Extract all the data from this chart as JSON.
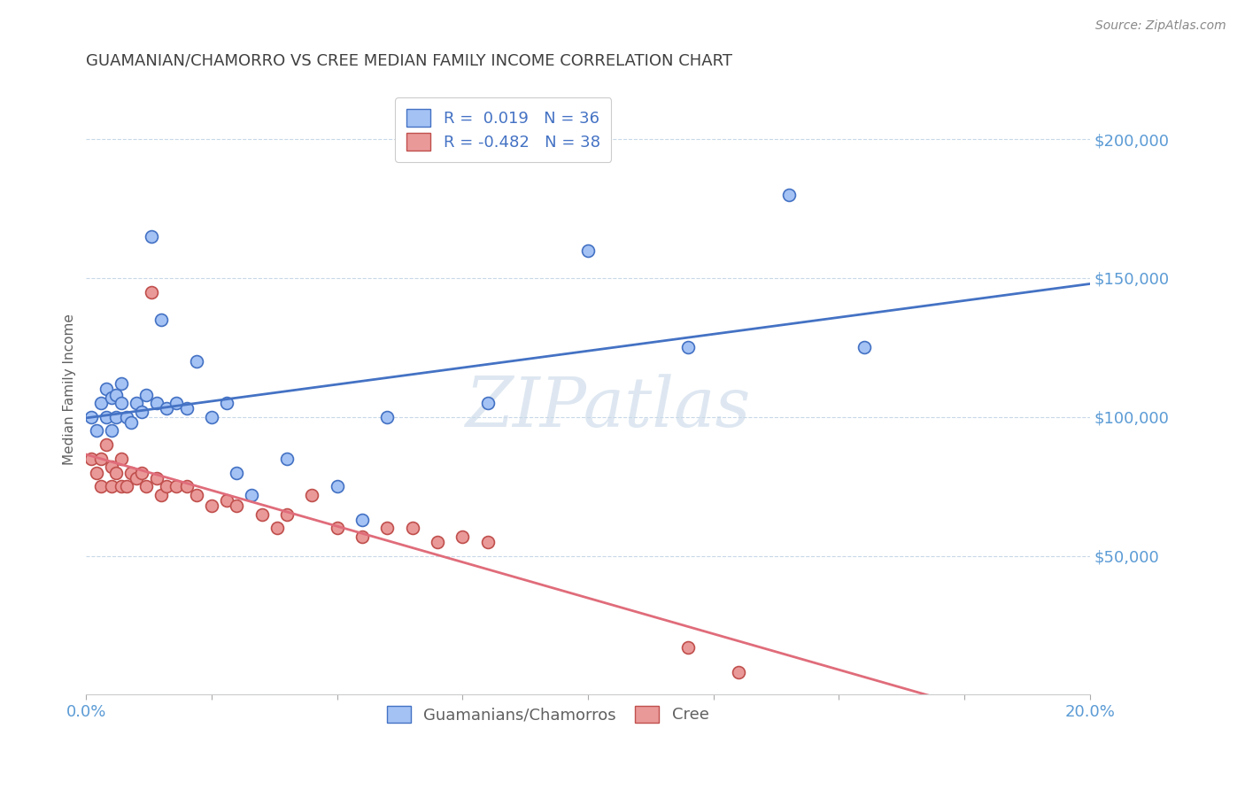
{
  "title": "GUAMANIAN/CHAMORRO VS CREE MEDIAN FAMILY INCOME CORRELATION CHART",
  "source_text": "Source: ZipAtlas.com",
  "ylabel": "Median Family Income",
  "xlim": [
    0.0,
    0.2
  ],
  "ylim": [
    0,
    220000
  ],
  "legend_r_blue": "0.019",
  "legend_n_blue": "36",
  "legend_r_pink": "-0.482",
  "legend_n_pink": "38",
  "blue_color": "#a4c2f4",
  "pink_color": "#ea9999",
  "blue_line_color": "#4472c4",
  "pink_line_color": "#e06c7a",
  "title_color": "#404040",
  "axis_color": "#5b9bd5",
  "watermark": "ZIPatlas",
  "blue_scatter_x": [
    0.001,
    0.002,
    0.003,
    0.004,
    0.004,
    0.005,
    0.005,
    0.006,
    0.006,
    0.007,
    0.007,
    0.008,
    0.009,
    0.01,
    0.011,
    0.012,
    0.013,
    0.014,
    0.015,
    0.016,
    0.018,
    0.02,
    0.022,
    0.025,
    0.028,
    0.03,
    0.033,
    0.04,
    0.05,
    0.055,
    0.06,
    0.08,
    0.1,
    0.12,
    0.14,
    0.155
  ],
  "blue_scatter_y": [
    100000,
    95000,
    105000,
    100000,
    110000,
    95000,
    107000,
    100000,
    108000,
    105000,
    112000,
    100000,
    98000,
    105000,
    102000,
    108000,
    165000,
    105000,
    135000,
    103000,
    105000,
    103000,
    120000,
    100000,
    105000,
    80000,
    72000,
    85000,
    75000,
    63000,
    100000,
    105000,
    160000,
    125000,
    180000,
    125000
  ],
  "pink_scatter_x": [
    0.001,
    0.002,
    0.003,
    0.003,
    0.004,
    0.005,
    0.005,
    0.006,
    0.007,
    0.007,
    0.008,
    0.009,
    0.01,
    0.011,
    0.012,
    0.013,
    0.014,
    0.015,
    0.016,
    0.018,
    0.02,
    0.022,
    0.025,
    0.028,
    0.03,
    0.035,
    0.038,
    0.04,
    0.045,
    0.05,
    0.055,
    0.06,
    0.065,
    0.07,
    0.075,
    0.08,
    0.12,
    0.13
  ],
  "pink_scatter_y": [
    85000,
    80000,
    75000,
    85000,
    90000,
    75000,
    82000,
    80000,
    75000,
    85000,
    75000,
    80000,
    78000,
    80000,
    75000,
    145000,
    78000,
    72000,
    75000,
    75000,
    75000,
    72000,
    68000,
    70000,
    68000,
    65000,
    60000,
    65000,
    72000,
    60000,
    57000,
    60000,
    60000,
    55000,
    57000,
    55000,
    17000,
    8000
  ]
}
